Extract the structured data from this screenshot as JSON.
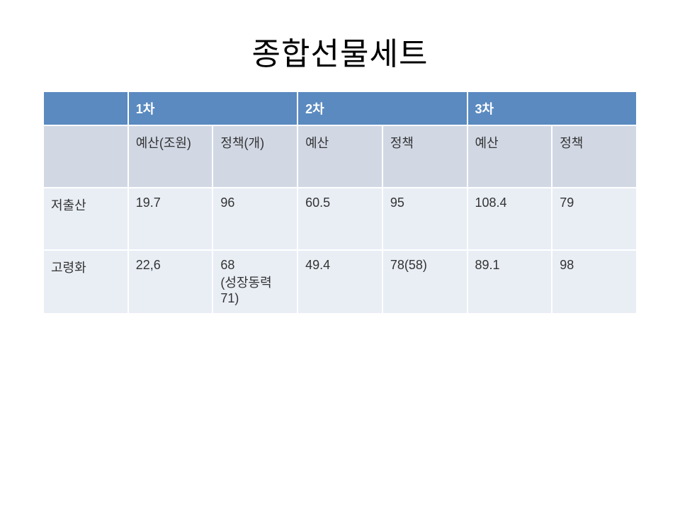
{
  "title": "종합선물세트",
  "table": {
    "type": "table",
    "background_color": "#ffffff",
    "header_bg": "#5a8ac0",
    "header_fg": "#ffffff",
    "subheader_bg": "#d1d8e4",
    "body_bg": "#e9eef5",
    "border_color": "#ffffff",
    "font_size": 18,
    "title_fontsize": 44,
    "col_widths_pct": [
      14.28,
      14.28,
      14.28,
      14.28,
      14.28,
      14.28,
      14.28
    ],
    "header1": [
      "",
      "1차",
      "2차",
      "3차"
    ],
    "header2": [
      "",
      "예산(조원)",
      "정책(개)",
      "예산",
      "정책",
      "예산",
      "정책"
    ],
    "rows": [
      {
        "label": "저출산",
        "cells": [
          "19.7",
          "96",
          "60.5",
          "95",
          "108.4",
          "79"
        ]
      },
      {
        "label": "고령화",
        "cells": [
          "22,6",
          "68\n(성장동력 71)",
          "49.4",
          "78(58)",
          "89.1",
          "98"
        ]
      }
    ]
  }
}
